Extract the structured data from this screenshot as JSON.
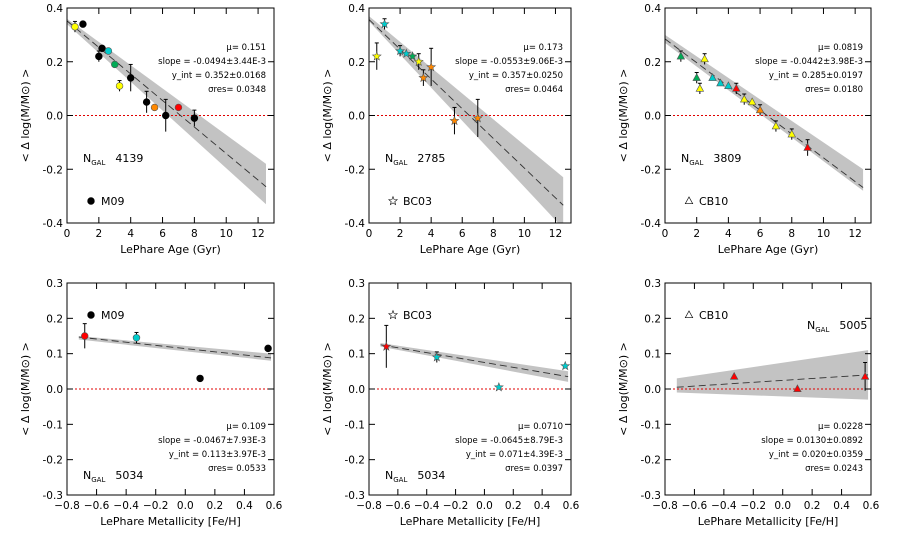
{
  "chart_data": [
    {
      "type": "scatter",
      "row": 0,
      "xlabel": "LePhare Age (Gyr)",
      "ylabel": "< Δ log(M/M⊙) >",
      "xlim": [
        0,
        13
      ],
      "ylim": [
        -0.4,
        0.4
      ],
      "xticks": [
        0,
        2,
        4,
        6,
        8,
        10,
        12
      ],
      "xtick_labels": [
        "0",
        "2",
        "4",
        "6",
        "8",
        "10",
        "12"
      ],
      "yticks": [
        -0.4,
        -0.2,
        0,
        0.2,
        0.4
      ],
      "ytick_labels": [
        "-0.4",
        "-0.2",
        "0.0",
        "0.2",
        "0.4"
      ],
      "band": {
        "x": [
          0,
          12.5
        ],
        "upper": [
          0.36,
          -0.18
        ],
        "lower": [
          0.34,
          -0.33
        ]
      },
      "fit_line": {
        "x": [
          0,
          12.5
        ],
        "y": [
          0.352,
          -0.265
        ]
      },
      "stats_lines": [
        "μ= 0.151",
        "slope = -0.0494±3.44E-3",
        "y_int = 0.352±0.0168",
        "σres= 0.0348"
      ],
      "ngal_label": "N",
      "ngal_sub": "GAL",
      "ngal_value": "4139",
      "model": {
        "marker": "circle",
        "label": "M09"
      },
      "points": [
        {
          "x": 0.5,
          "y": 0.33,
          "err": 0.02,
          "color": "#ffff00"
        },
        {
          "x": 1.0,
          "y": 0.34,
          "err": 0.0,
          "color": "#000000"
        },
        {
          "x": 2.0,
          "y": 0.22,
          "err": 0.02,
          "color": "#000000"
        },
        {
          "x": 2.2,
          "y": 0.25,
          "err": 0.0,
          "color": "#000000"
        },
        {
          "x": 2.6,
          "y": 0.24,
          "err": 0.0,
          "color": "#00cccc"
        },
        {
          "x": 3.0,
          "y": 0.19,
          "err": 0.0,
          "color": "#00aa55"
        },
        {
          "x": 3.3,
          "y": 0.11,
          "err": 0.02,
          "color": "#ffff00"
        },
        {
          "x": 4.0,
          "y": 0.14,
          "err": 0.05,
          "color": "#000000"
        },
        {
          "x": 5.0,
          "y": 0.05,
          "err": 0.04,
          "color": "#000000"
        },
        {
          "x": 5.5,
          "y": 0.03,
          "err": 0.0,
          "color": "#ff8800"
        },
        {
          "x": 6.2,
          "y": 0.0,
          "err": 0.06,
          "color": "#000000"
        },
        {
          "x": 7.0,
          "y": 0.03,
          "err": 0.0,
          "color": "#ff0000"
        },
        {
          "x": 8.0,
          "y": -0.01,
          "err": 0.03,
          "color": "#000000"
        }
      ]
    },
    {
      "type": "scatter",
      "row": 0,
      "xlabel": "LePhare Age (Gyr)",
      "ylabel": "< Δ log(M/M⊙) >",
      "xlim": [
        0,
        13
      ],
      "ylim": [
        -0.4,
        0.4
      ],
      "xticks": [
        0,
        2,
        4,
        6,
        8,
        10,
        12
      ],
      "xtick_labels": [
        "0",
        "2",
        "4",
        "6",
        "8",
        "10",
        "12"
      ],
      "yticks": [
        -0.4,
        -0.2,
        0,
        0.2,
        0.4
      ],
      "ytick_labels": [
        "-0.4",
        "-0.2",
        "0.0",
        "0.2",
        "0.4"
      ],
      "band": {
        "x": [
          0,
          12.5
        ],
        "upper": [
          0.37,
          -0.23
        ],
        "lower": [
          0.35,
          -0.42
        ]
      },
      "fit_line": {
        "x": [
          0,
          12.5
        ],
        "y": [
          0.357,
          -0.334
        ]
      },
      "stats_lines": [
        "μ= 0.173",
        "slope = -0.0553±9.06E-3",
        "y_int = 0.357±0.0250",
        "σres= 0.0464"
      ],
      "ngal_label": "N",
      "ngal_sub": "GAL",
      "ngal_value": "2785",
      "model": {
        "marker": "star",
        "label": "BC03"
      },
      "points": [
        {
          "x": 0.5,
          "y": 0.22,
          "err": 0.05,
          "color": "#ffff00"
        },
        {
          "x": 1.0,
          "y": 0.34,
          "err": 0.02,
          "color": "#00cccc"
        },
        {
          "x": 2.0,
          "y": 0.24,
          "err": 0.02,
          "color": "#00cccc"
        },
        {
          "x": 2.4,
          "y": 0.23,
          "err": 0.0,
          "color": "#00cccc"
        },
        {
          "x": 2.8,
          "y": 0.22,
          "err": 0.0,
          "color": "#00aa55"
        },
        {
          "x": 3.2,
          "y": 0.2,
          "err": 0.03,
          "color": "#ffff00"
        },
        {
          "x": 3.5,
          "y": 0.14,
          "err": 0.03,
          "color": "#ff8800"
        },
        {
          "x": 4.0,
          "y": 0.18,
          "err": 0.07,
          "color": "#ff8800"
        },
        {
          "x": 5.5,
          "y": -0.02,
          "err": 0.05,
          "color": "#ff8800"
        },
        {
          "x": 7.0,
          "y": -0.01,
          "err": 0.07,
          "color": "#ff8800"
        }
      ]
    },
    {
      "type": "scatter",
      "row": 0,
      "xlabel": "LePhare Age (Gyr)",
      "ylabel": "< Δ log(M/M⊙) >",
      "xlim": [
        0,
        13
      ],
      "ylim": [
        -0.4,
        0.4
      ],
      "xticks": [
        0,
        2,
        4,
        6,
        8,
        10,
        12
      ],
      "xtick_labels": [
        "0",
        "2",
        "4",
        "6",
        "8",
        "10",
        "12"
      ],
      "yticks": [
        -0.4,
        -0.2,
        0,
        0.2,
        0.4
      ],
      "ytick_labels": [
        "-0.4",
        "-0.2",
        "0.0",
        "0.2",
        "0.4"
      ],
      "band": {
        "x": [
          0,
          12.5
        ],
        "upper": [
          0.3,
          -0.2
        ],
        "lower": [
          0.27,
          -0.28
        ]
      },
      "fit_line": {
        "x": [
          0,
          12.5
        ],
        "y": [
          0.285,
          -0.268
        ]
      },
      "stats_lines": [
        "μ= 0.0819",
        "slope = -0.0442±3.98E-3",
        "y_int = 0.285±0.0197",
        "σres= 0.0180"
      ],
      "ngal_label": "N",
      "ngal_sub": "GAL",
      "ngal_value": "3809",
      "model": {
        "marker": "triangle",
        "label": "CB10"
      },
      "points": [
        {
          "x": 1.0,
          "y": 0.22,
          "err": 0.02,
          "color": "#00aa55"
        },
        {
          "x": 2.0,
          "y": 0.14,
          "err": 0.02,
          "color": "#00aa55"
        },
        {
          "x": 2.2,
          "y": 0.1,
          "err": 0.02,
          "color": "#ffff00"
        },
        {
          "x": 2.5,
          "y": 0.21,
          "err": 0.02,
          "color": "#ffff00"
        },
        {
          "x": 3.0,
          "y": 0.14,
          "err": 0.0,
          "color": "#00cccc"
        },
        {
          "x": 3.5,
          "y": 0.12,
          "err": 0.0,
          "color": "#00cccc"
        },
        {
          "x": 4.0,
          "y": 0.11,
          "err": 0.0,
          "color": "#00cccc"
        },
        {
          "x": 4.5,
          "y": 0.1,
          "err": 0.02,
          "color": "#ff0000"
        },
        {
          "x": 5.0,
          "y": 0.06,
          "err": 0.02,
          "color": "#ffff00"
        },
        {
          "x": 5.5,
          "y": 0.05,
          "err": 0.0,
          "color": "#ffff00"
        },
        {
          "x": 6.0,
          "y": 0.02,
          "err": 0.02,
          "color": "#ff8800"
        },
        {
          "x": 7.0,
          "y": -0.04,
          "err": 0.02,
          "color": "#ffff00"
        },
        {
          "x": 8.0,
          "y": -0.07,
          "err": 0.02,
          "color": "#ffff00"
        },
        {
          "x": 9.0,
          "y": -0.12,
          "err": 0.03,
          "color": "#ff0000"
        }
      ]
    },
    {
      "type": "scatter",
      "row": 1,
      "xlabel": "LePhare Metallicity [Fe/H]",
      "ylabel": "< Δ log(M/M⊙) >",
      "xlim": [
        -0.8,
        0.6
      ],
      "ylim": [
        -0.3,
        0.3
      ],
      "xticks": [
        -0.8,
        -0.6,
        -0.4,
        -0.2,
        0,
        0.2,
        0.4,
        0.6
      ],
      "xtick_labels": [
        "−0.8",
        "−0.6",
        "−0.4",
        "−0.2",
        "0.0",
        "0.2",
        "0.4",
        "0.6"
      ],
      "yticks": [
        -0.3,
        -0.2,
        -0.1,
        0,
        0.1,
        0.2,
        0.3
      ],
      "ytick_labels": [
        "-0.3",
        "-0.2",
        "-0.1",
        "0.0",
        "0.1",
        "0.2",
        "0.3"
      ],
      "band": {
        "x": [
          -0.72,
          0.58
        ],
        "upper": [
          0.15,
          0.1
        ],
        "lower": [
          0.14,
          0.08
        ]
      },
      "fit_line": {
        "x": [
          -0.72,
          0.58
        ],
        "y": [
          0.147,
          0.088
        ]
      },
      "stats_lines": [
        "μ= 0.109",
        "slope = -0.0467±7.93E-3",
        "y_int = 0.113±3.97E-3",
        "σres= 0.0533"
      ],
      "ngal_label": "N",
      "ngal_sub": "GAL",
      "ngal_value": "5034",
      "model": {
        "marker": "circle",
        "label": "M09"
      },
      "points": [
        {
          "x": -0.68,
          "y": 0.15,
          "err": 0.035,
          "color": "#ff0000"
        },
        {
          "x": -0.33,
          "y": 0.145,
          "err": 0.015,
          "color": "#00cccc"
        },
        {
          "x": 0.1,
          "y": 0.03,
          "err": 0.0,
          "color": "#000000"
        },
        {
          "x": 0.56,
          "y": 0.115,
          "err": 0.0,
          "color": "#000000"
        }
      ]
    },
    {
      "type": "scatter",
      "row": 1,
      "xlabel": "LePhare Metallicity [Fe/H]",
      "ylabel": "< Δ log(M/M⊙) >",
      "xlim": [
        -0.8,
        0.6
      ],
      "ylim": [
        -0.3,
        0.3
      ],
      "xticks": [
        -0.8,
        -0.6,
        -0.4,
        -0.2,
        0,
        0.2,
        0.4,
        0.6
      ],
      "xtick_labels": [
        "−0.8",
        "−0.6",
        "−0.4",
        "−0.2",
        "0.0",
        "0.2",
        "0.4",
        "0.6"
      ],
      "yticks": [
        -0.3,
        -0.2,
        -0.1,
        0,
        0.1,
        0.2,
        0.3
      ],
      "ytick_labels": [
        "-0.3",
        "-0.2",
        "-0.1",
        "0.0",
        "0.1",
        "0.2",
        "0.3"
      ],
      "band": {
        "x": [
          -0.72,
          0.58
        ],
        "upper": [
          0.13,
          0.05
        ],
        "lower": [
          0.12,
          0.02
        ]
      },
      "fit_line": {
        "x": [
          -0.72,
          0.58
        ],
        "y": [
          0.125,
          0.035
        ]
      },
      "stats_lines": [
        "μ= 0.0710",
        "slope = -0.0645±8.79E-3",
        "y_int = 0.071±4.39E-3",
        "σres= 0.0397"
      ],
      "ngal_label": "N",
      "ngal_sub": "GAL",
      "ngal_value": "5034",
      "model": {
        "marker": "star",
        "label": "BC03"
      },
      "points": [
        {
          "x": -0.68,
          "y": 0.12,
          "err": 0.06,
          "color": "#ff0000"
        },
        {
          "x": -0.33,
          "y": 0.09,
          "err": 0.015,
          "color": "#00cccc"
        },
        {
          "x": 0.1,
          "y": 0.005,
          "err": 0.0,
          "color": "#00cccc"
        },
        {
          "x": 0.56,
          "y": 0.065,
          "err": 0.0,
          "color": "#00cccc"
        }
      ]
    },
    {
      "type": "scatter",
      "row": 1,
      "xlabel": "LePhare Metallicity [Fe/H]",
      "ylabel": "< Δ log(M/M⊙) >",
      "xlim": [
        -0.8,
        0.6
      ],
      "ylim": [
        -0.3,
        0.3
      ],
      "xticks": [
        -0.8,
        -0.6,
        -0.4,
        -0.2,
        0,
        0.2,
        0.4,
        0.6
      ],
      "xtick_labels": [
        "−0.8",
        "−0.6",
        "−0.4",
        "−0.2",
        "0.0",
        "0.2",
        "0.4",
        "0.6"
      ],
      "yticks": [
        -0.3,
        -0.2,
        -0.1,
        0,
        0.1,
        0.2,
        0.3
      ],
      "ytick_labels": [
        "-0.3",
        "-0.2",
        "-0.1",
        "0.0",
        "0.1",
        "0.2",
        "0.3"
      ],
      "band": {
        "x": [
          -0.72,
          0.58
        ],
        "upper": [
          0.03,
          0.11
        ],
        "lower": [
          -0.01,
          -0.03
        ]
      },
      "fit_line": {
        "x": [
          -0.72,
          0.58
        ],
        "y": [
          0.005,
          0.04
        ]
      },
      "stats_lines": [
        "μ= 0.0228",
        "slope = 0.0130±0.0892",
        "y_int = 0.020±0.0359",
        "σres= 0.0243"
      ],
      "ngal_label": "N",
      "ngal_sub": "GAL",
      "ngal_value": "5005",
      "model": {
        "marker": "triangle",
        "label": "CB10"
      },
      "points": [
        {
          "x": -0.33,
          "y": 0.035,
          "err": 0.0,
          "color": "#ff0000"
        },
        {
          "x": 0.1,
          "y": 0.0,
          "err": 0.0,
          "color": "#ff0000"
        },
        {
          "x": 0.56,
          "y": 0.035,
          "err": 0.04,
          "color": "#ff0000"
        }
      ]
    }
  ]
}
